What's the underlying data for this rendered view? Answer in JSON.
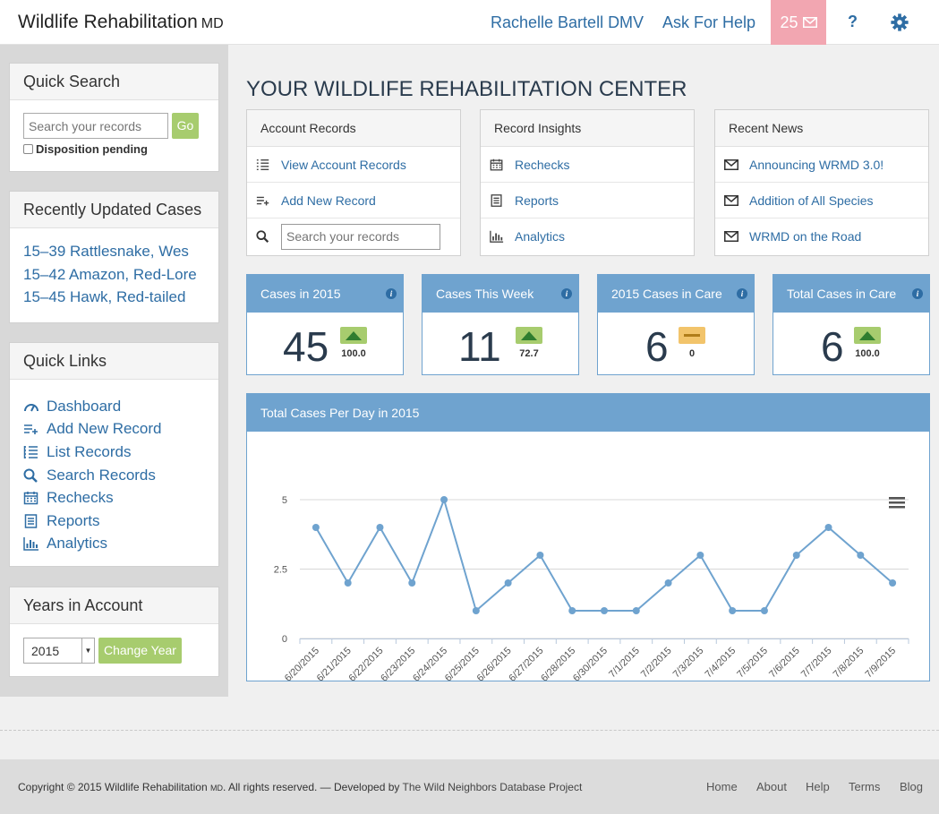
{
  "header": {
    "brand": "Wildlife Rehabilitation",
    "brand_suffix": "MD",
    "user": "Rachelle Bartell DMV",
    "help": "Ask For Help",
    "messages_count": "25",
    "question": "?"
  },
  "sidebar": {
    "quick_search": {
      "title": "Quick Search",
      "placeholder": "Search your records",
      "go": "Go",
      "checkbox_label": "Disposition pending"
    },
    "recent_cases": {
      "title": "Recently Updated Cases",
      "items": [
        "15–39 Rattlesnake, Wes",
        "15–42 Amazon, Red-Lore",
        "15–45 Hawk, Red-tailed"
      ]
    },
    "quick_links": {
      "title": "Quick Links",
      "items": [
        {
          "label": "Dashboard",
          "icon": "gauge-icon"
        },
        {
          "label": "Add New Record",
          "icon": "add-list-icon"
        },
        {
          "label": "List Records",
          "icon": "list-icon"
        },
        {
          "label": "Search Records",
          "icon": "search-icon"
        },
        {
          "label": "Rechecks",
          "icon": "calendar-icon"
        },
        {
          "label": "Reports",
          "icon": "report-icon"
        },
        {
          "label": "Analytics",
          "icon": "bar-chart-icon"
        }
      ]
    },
    "years": {
      "title": "Years in Account",
      "selected": "2015",
      "button": "Change Year"
    }
  },
  "main": {
    "title": "YOUR WILDLIFE REHABILITATION CENTER",
    "account_records": {
      "title": "Account Records",
      "view": "View Account Records",
      "add": "Add New Record",
      "search_placeholder": "Search your records"
    },
    "record_insights": {
      "title": "Record Insights",
      "items": [
        "Rechecks",
        "Reports",
        "Analytics"
      ]
    },
    "recent_news": {
      "title": "Recent News",
      "items": [
        "Announcing WRMD 3.0!",
        "Addition of All Species",
        "WRMD on the Road"
      ]
    },
    "stats": [
      {
        "title": "Cases in 2015",
        "value": "45",
        "change": "100.0",
        "trend": "up"
      },
      {
        "title": "Cases This Week",
        "value": "11",
        "change": "72.7",
        "trend": "up"
      },
      {
        "title": "2015 Cases in Care",
        "value": "6",
        "change": "0",
        "trend": "flat"
      },
      {
        "title": "Total Cases in Care",
        "value": "6",
        "change": "100.0",
        "trend": "up"
      }
    ],
    "chart_title": "Total Cases Per Day in 2015"
  },
  "chart_data": {
    "type": "line",
    "title": "Total Cases Per Day in 2015",
    "categories": [
      "6/20/2015",
      "6/21/2015",
      "6/22/2015",
      "6/23/2015",
      "6/24/2015",
      "6/25/2015",
      "6/26/2015",
      "6/27/2015",
      "6/28/2015",
      "6/30/2015",
      "7/1/2015",
      "7/2/2015",
      "7/3/2015",
      "7/4/2015",
      "7/5/2015",
      "7/6/2015",
      "7/7/2015",
      "7/8/2015",
      "7/9/2015"
    ],
    "values": [
      4,
      2,
      4,
      2,
      5,
      1,
      2,
      3,
      1,
      1,
      1,
      2,
      3,
      1,
      1,
      3,
      4,
      3,
      2
    ],
    "yticks": [
      "0",
      "2.5",
      "5"
    ],
    "ylim": [
      0,
      5
    ],
    "grid": true,
    "legend": "none",
    "color": "#6fa3cf"
  },
  "footer": {
    "copyright_prefix": "Copyright © 2015 Wildlife Rehabilitation",
    "copyright_md": "MD",
    "copyright_suffix": ". All rights reserved. — Developed by",
    "project": "The Wild Neighbors Database Project",
    "links": [
      "Home",
      "About",
      "Help",
      "Terms",
      "Blog"
    ]
  }
}
